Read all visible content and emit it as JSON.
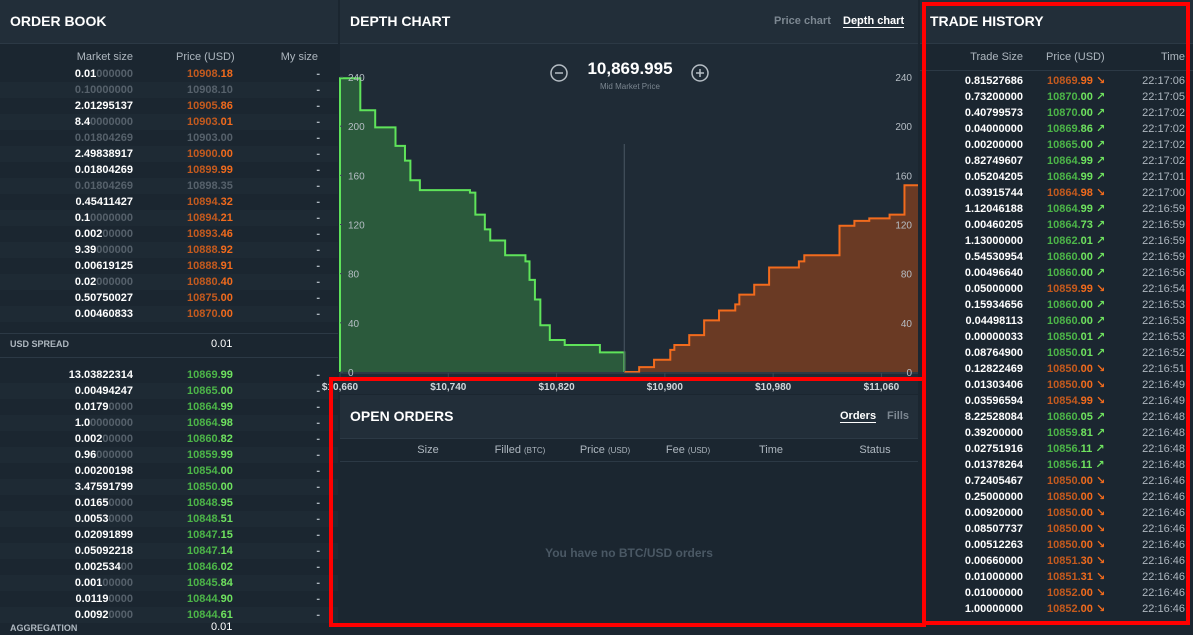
{
  "order_book": {
    "title": "ORDER BOOK",
    "columns": [
      "Market size",
      "Price (USD)",
      "My size"
    ],
    "asks": [
      {
        "size": "0.01000000",
        "price": "10908.18",
        "mine": "-"
      },
      {
        "size": "0.10000000",
        "price": "10908.10",
        "mine": "-",
        "dim": true
      },
      {
        "size": "2.01295137",
        "price": "10905.86",
        "mine": "-"
      },
      {
        "size": "8.40000000",
        "price": "10903.01",
        "mine": "-"
      },
      {
        "size": "0.01804269",
        "price": "10903.00",
        "mine": "-",
        "dim": true
      },
      {
        "size": "2.49838917",
        "price": "10900.00",
        "mine": "-"
      },
      {
        "size": "0.01804269",
        "price": "10899.99",
        "mine": "-"
      },
      {
        "size": "0.01804269",
        "price": "10898.35",
        "mine": "-",
        "dim": true
      },
      {
        "size": "0.45411427",
        "price": "10894.32",
        "mine": "-"
      },
      {
        "size": "0.10000000",
        "price": "10894.21",
        "mine": "-"
      },
      {
        "size": "0.00200000",
        "price": "10893.46",
        "mine": "-"
      },
      {
        "size": "9.39000000",
        "price": "10888.92",
        "mine": "-"
      },
      {
        "size": "0.00619125",
        "price": "10888.91",
        "mine": "-"
      },
      {
        "size": "0.02000000",
        "price": "10880.40",
        "mine": "-"
      },
      {
        "size": "0.50750027",
        "price": "10875.00",
        "mine": "-"
      },
      {
        "size": "0.00460833",
        "price": "10870.00",
        "mine": "-"
      }
    ],
    "spread": {
      "label": "USD SPREAD",
      "value": "0.01"
    },
    "bids": [
      {
        "size": "13.03822314",
        "price": "10869.99",
        "mine": "-"
      },
      {
        "size": "0.00494247",
        "price": "10865.00",
        "mine": "-"
      },
      {
        "size": "0.01790000",
        "price": "10864.99",
        "mine": "-"
      },
      {
        "size": "1.00000000",
        "price": "10864.98",
        "mine": "-"
      },
      {
        "size": "0.00200000",
        "price": "10860.82",
        "mine": "-"
      },
      {
        "size": "0.96000000",
        "price": "10859.99",
        "mine": "-"
      },
      {
        "size": "0.00200198",
        "price": "10854.00",
        "mine": "-"
      },
      {
        "size": "3.47591799",
        "price": "10850.00",
        "mine": "-"
      },
      {
        "size": "0.01650000",
        "price": "10848.95",
        "mine": "-"
      },
      {
        "size": "0.00530000",
        "price": "10848.51",
        "mine": "-"
      },
      {
        "size": "0.02091899",
        "price": "10847.15",
        "mine": "-"
      },
      {
        "size": "0.05092218",
        "price": "10847.14",
        "mine": "-"
      },
      {
        "size": "0.00253400",
        "price": "10846.02",
        "mine": "-"
      },
      {
        "size": "0.00100000",
        "price": "10845.84",
        "mine": "-"
      },
      {
        "size": "0.01190000",
        "price": "10844.90",
        "mine": "-"
      },
      {
        "size": "0.00920000",
        "price": "10844.61",
        "mine": "-"
      }
    ],
    "aggregation": {
      "label": "AGGREGATION",
      "value": "0.01"
    }
  },
  "depth_chart": {
    "title": "DEPTH CHART",
    "tabs": [
      "Price chart",
      "Depth chart"
    ],
    "active_tab": 1,
    "mid_price": {
      "value": 10869.995,
      "label": "10,869.995"
    },
    "mid_label": "Mid Market Price",
    "xlim": [
      10660,
      11087
    ],
    "xticks": [
      {
        "value": 10660,
        "label": "$10,660"
      },
      {
        "value": 10740,
        "label": "$10,740"
      },
      {
        "value": 10820,
        "label": "$10,820"
      },
      {
        "value": 10900,
        "label": "$10,900"
      },
      {
        "value": 10980,
        "label": "$10,980"
      },
      {
        "value": 11060,
        "label": "$11,060"
      }
    ],
    "ylim": [
      0,
      262
    ],
    "yticks": [
      0,
      40,
      80,
      120,
      160,
      200,
      240
    ],
    "bids": {
      "color": "#5fe35a",
      "fill": "#2b5a3c",
      "x": [
        10660,
        10675,
        10686,
        10701,
        10708,
        10712,
        10719,
        10756,
        10760,
        10767,
        10771,
        10782,
        10797,
        10800,
        10804,
        10808,
        10815,
        10826,
        10852,
        10870
      ],
      "y": [
        239,
        213,
        199,
        184,
        172,
        156,
        148,
        146,
        128,
        116,
        107,
        95,
        90,
        75,
        59,
        38,
        26,
        22,
        16,
        0
      ]
    },
    "asks": {
      "color": "#f26b1d",
      "fill": "#6a3a24",
      "x": [
        10870,
        10881,
        10892,
        10904,
        10907,
        10918,
        10929,
        10940,
        10952,
        10955,
        10966,
        10977,
        10999,
        11003,
        11029,
        11040,
        11051,
        11066,
        11077
      ],
      "y": [
        0,
        4,
        10,
        18,
        22,
        30,
        42,
        50,
        55,
        63,
        71,
        85,
        90,
        95,
        119,
        123,
        125,
        128,
        152
      ]
    }
  },
  "open_orders": {
    "title": "OPEN ORDERS",
    "tabs": [
      "Orders",
      "Fills"
    ],
    "active_tab": 0,
    "columns": [
      {
        "name": "Size"
      },
      {
        "name": "Filled",
        "unit": "(BTC)"
      },
      {
        "name": "Price",
        "unit": "(USD)"
      },
      {
        "name": "Fee",
        "unit": "(USD)"
      },
      {
        "name": "Time"
      },
      {
        "name": "Status"
      }
    ],
    "empty": "You have no BTC/USD orders"
  },
  "trade_history": {
    "title": "TRADE HISTORY",
    "columns": [
      "Trade Size",
      "Price (USD)",
      "Time"
    ],
    "trades": [
      {
        "size": "0.81527686",
        "price": "10869.99",
        "up": false,
        "time": "22:17:06"
      },
      {
        "size": "0.73200000",
        "price": "10870.00",
        "up": true,
        "time": "22:17:05"
      },
      {
        "size": "0.40799573",
        "price": "10870.00",
        "up": true,
        "time": "22:17:02"
      },
      {
        "size": "0.04000000",
        "price": "10869.86",
        "up": true,
        "time": "22:17:02"
      },
      {
        "size": "0.00200000",
        "price": "10865.00",
        "up": true,
        "time": "22:17:02"
      },
      {
        "size": "0.82749607",
        "price": "10864.99",
        "up": true,
        "time": "22:17:02"
      },
      {
        "size": "0.05204205",
        "price": "10864.99",
        "up": true,
        "time": "22:17:01"
      },
      {
        "size": "0.03915744",
        "price": "10864.98",
        "up": false,
        "time": "22:17:00"
      },
      {
        "size": "1.12046188",
        "price": "10864.99",
        "up": true,
        "time": "22:16:59"
      },
      {
        "size": "0.00460205",
        "price": "10864.73",
        "up": true,
        "time": "22:16:59"
      },
      {
        "size": "1.13000000",
        "price": "10862.01",
        "up": true,
        "time": "22:16:59"
      },
      {
        "size": "0.54530954",
        "price": "10860.00",
        "up": true,
        "time": "22:16:59"
      },
      {
        "size": "0.00496640",
        "price": "10860.00",
        "up": true,
        "time": "22:16:56"
      },
      {
        "size": "0.05000000",
        "price": "10859.99",
        "up": false,
        "time": "22:16:54"
      },
      {
        "size": "0.15934656",
        "price": "10860.00",
        "up": true,
        "time": "22:16:53"
      },
      {
        "size": "0.04498113",
        "price": "10860.00",
        "up": true,
        "time": "22:16:53"
      },
      {
        "size": "0.00000033",
        "price": "10850.01",
        "up": true,
        "time": "22:16:53"
      },
      {
        "size": "0.08764900",
        "price": "10850.01",
        "up": true,
        "time": "22:16:52"
      },
      {
        "size": "0.12822469",
        "price": "10850.00",
        "up": false,
        "time": "22:16:51"
      },
      {
        "size": "0.01303406",
        "price": "10850.00",
        "up": false,
        "time": "22:16:49"
      },
      {
        "size": "0.03596594",
        "price": "10854.99",
        "up": false,
        "time": "22:16:49"
      },
      {
        "size": "8.22528084",
        "price": "10860.05",
        "up": true,
        "time": "22:16:48"
      },
      {
        "size": "0.39200000",
        "price": "10859.81",
        "up": true,
        "time": "22:16:48"
      },
      {
        "size": "0.02751916",
        "price": "10856.11",
        "up": true,
        "time": "22:16:48"
      },
      {
        "size": "0.01378264",
        "price": "10856.11",
        "up": true,
        "time": "22:16:48"
      },
      {
        "size": "0.72405467",
        "price": "10850.00",
        "up": false,
        "time": "22:16:46"
      },
      {
        "size": "0.25000000",
        "price": "10850.00",
        "up": false,
        "time": "22:16:46"
      },
      {
        "size": "0.00920000",
        "price": "10850.00",
        "up": false,
        "time": "22:16:46"
      },
      {
        "size": "0.08507737",
        "price": "10850.00",
        "up": false,
        "time": "22:16:46"
      },
      {
        "size": "0.00512263",
        "price": "10850.00",
        "up": false,
        "time": "22:16:46"
      },
      {
        "size": "0.00660000",
        "price": "10851.30",
        "up": false,
        "time": "22:16:46"
      },
      {
        "size": "0.01000000",
        "price": "10851.31",
        "up": false,
        "time": "22:16:46"
      },
      {
        "size": "0.01000000",
        "price": "10852.00",
        "up": false,
        "time": "22:16:46"
      },
      {
        "size": "1.00000000",
        "price": "10852.00",
        "up": false,
        "time": "22:16:46"
      }
    ]
  }
}
